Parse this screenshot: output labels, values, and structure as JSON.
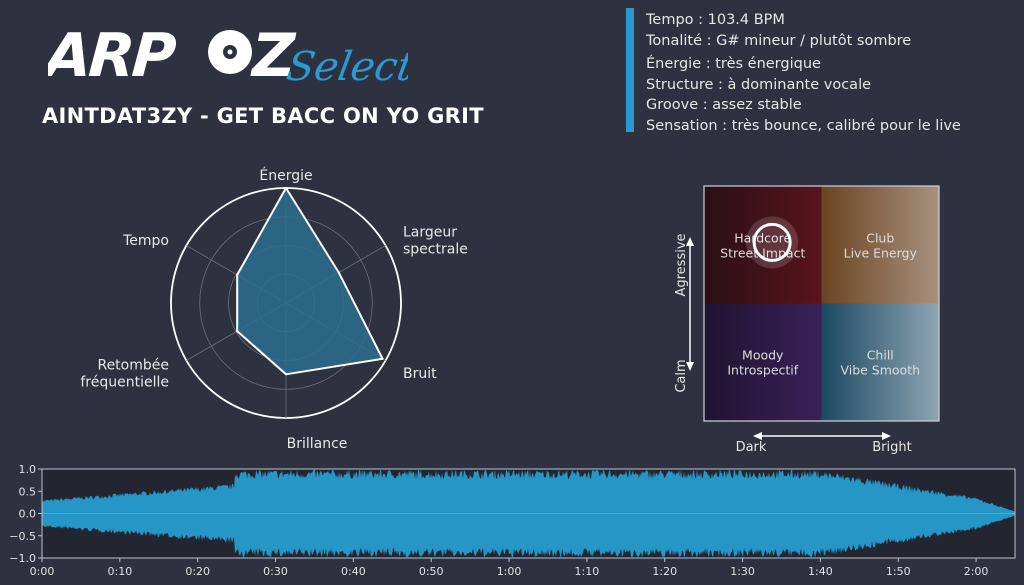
{
  "logo": {
    "text_main": "ARPOZ",
    "text_script": "Selecta"
  },
  "track_title": "AINTDAT3ZY - GET BACC ON YO GRIT",
  "info": [
    "Tempo : 103.4 BPM",
    "Tonalité : G# mineur / plutôt sombre",
    "Énergie : très énergique",
    "Structure : à dominante vocale",
    "Groove : assez stable",
    "Sensation : très bounce, calibré pour le live"
  ],
  "colors": {
    "accent": "#2a9ad0",
    "background": "#2e3240",
    "radar_fill": "#2a6f8f"
  },
  "radar": {
    "axes": [
      "Énergie",
      "Largeur\nspectrale",
      "Bruit",
      "Brillance",
      "Retombée\nfréquentielle",
      "Tempo"
    ],
    "values": [
      1.0,
      0.53,
      0.97,
      0.62,
      0.49,
      0.49
    ],
    "range": [
      0,
      1
    ],
    "grid_levels": [
      0.25,
      0.5,
      0.75,
      1.0
    ]
  },
  "mood_map": {
    "quadrants": {
      "top_left": "Hardcore\nStreet Impact",
      "top_right": "Club\nLive Energy",
      "bottom_left": "Moody\nIntrospectif",
      "bottom_right": "Chill\nVibe Smooth"
    },
    "y_top_label": "Agressive",
    "y_bottom_label": "Calm",
    "x_left_label": "Dark",
    "x_right_label": "Bright",
    "marker": {
      "brightness": 0.29,
      "aggressiveness": 0.76
    }
  },
  "waveform": {
    "yticks": [
      "1.0",
      "0.5",
      "0.0",
      "−0.5",
      "−1.0"
    ],
    "xticks": [
      "0:00",
      "0:10",
      "0:20",
      "0:30",
      "0:40",
      "0:50",
      "1:00",
      "1:10",
      "1:20",
      "1:30",
      "1:40",
      "1:50",
      "2:00"
    ],
    "duration_s": 125,
    "ylim": [
      -1,
      1
    ]
  }
}
